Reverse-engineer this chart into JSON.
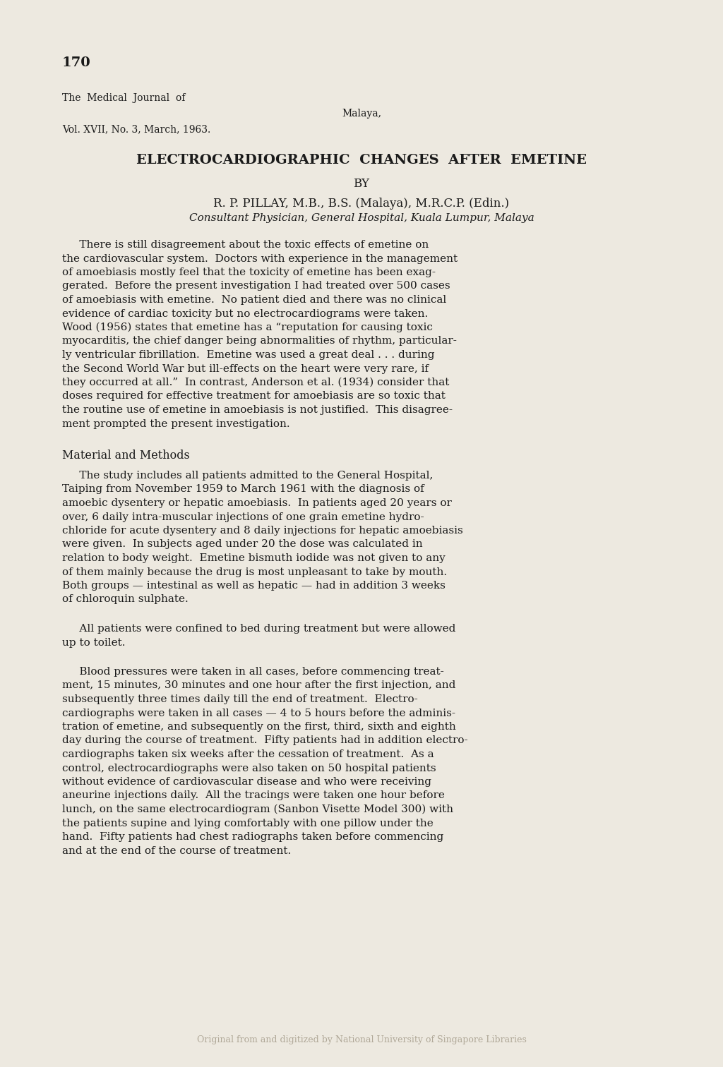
{
  "background_color": "#ede9e0",
  "page_number": "170",
  "journal_line1": "The  Medical  Journal  of",
  "journal_line2": "Malaya,",
  "journal_line3": "Vol. XVII, No. 3, March, 1963.",
  "title": "ELECTROCARDIOGRAPHIC  CHANGES  AFTER  EMETINE",
  "by_line": "BY",
  "author": "R. P. PILLAY, M.B., B.S. (Malaya), M.R.C.P. (Edin.)",
  "affiliation": "Consultant Physician, General Hospital, Kuala Lumpur, Malaya",
  "paragraph1_lines": [
    "     There is still disagreement about the toxic effects of emetine on",
    "the cardiovascular system.  Doctors with experience in the management",
    "of amoebiasis mostly feel that the toxicity of emetine has been exag-",
    "gerated.  Before the present investigation I had treated over 500 cases",
    "of amoebiasis with emetine.  No patient died and there was no clinical",
    "evidence of cardiac toxicity but no electrocardiograms were taken.",
    "Wood (1956) states that emetine has a “reputation for causing toxic",
    "myocarditis, the chief danger being abnormalities of rhythm, particular-",
    "ly ventricular fibrillation.  Emetine was used a great deal . . . during",
    "the Second World War but ill-effects on the heart were very rare, if",
    "they occurred at all.”  In contrast, Anderson et al. (1934) consider that",
    "doses required for effective treatment for amoebiasis are so toxic that",
    "the routine use of emetine in amoebiasis is not justified.  This disagree-",
    "ment prompted the present investigation."
  ],
  "section_heading_small": "M",
  "section_heading_large": "ATERIAL",
  "section_heading_small2": " AND ",
  "section_heading_small3": "M",
  "section_heading_large2": "ETHODS",
  "section_heading": "Material and Methods",
  "paragraph2_lines": [
    "     The study includes all patients admitted to the General Hospital,",
    "Taiping from November 1959 to March 1961 with the diagnosis of",
    "amoebic dysentery or hepatic amoebiasis.  In patients aged 20 years or",
    "over, 6 daily intra-muscular injections of one grain emetine hydro-",
    "chloride for acute dysentery and 8 daily injections for hepatic amoebiasis",
    "were given.  In subjects aged under 20 the dose was calculated in",
    "relation to body weight.  Emetine bismuth iodide was not given to any",
    "of them mainly because the drug is most unpleasant to take by mouth.",
    "Both groups — intestinal as well as hepatic — had in addition 3 weeks",
    "of chloroquin sulphate."
  ],
  "paragraph3_lines": [
    "     All patients were confined to bed during treatment but were allowed",
    "up to toilet."
  ],
  "paragraph4_lines": [
    "     Blood pressures were taken in all cases, before commencing treat-",
    "ment, 15 minutes, 30 minutes and one hour after the first injection, and",
    "subsequently three times daily till the end of treatment.  Electro-",
    "cardiographs were taken in all cases — 4 to 5 hours before the adminis-",
    "tration of emetine, and subsequently on the first, third, sixth and eighth",
    "day during the course of treatment.  Fifty patients had in addition electro-",
    "cardiographs taken six weeks after the cessation of treatment.  As a",
    "control, electrocardiographs were also taken on 50 hospital patients",
    "without evidence of cardiovascular disease and who were receiving",
    "aneurine injections daily.  All the tracings were taken one hour before",
    "lunch, on the same electrocardiogram (Sanbon Visette Model 300) with",
    "the patients supine and lying comfortably with one pillow under the",
    "hand.  Fifty patients had chest radiographs taken before commencing",
    "and at the end of the course of treatment."
  ],
  "footer": "Original from and digitized by National University of Singapore Libraries",
  "text_color": "#1a1a1a",
  "footer_color": "#b0a898"
}
